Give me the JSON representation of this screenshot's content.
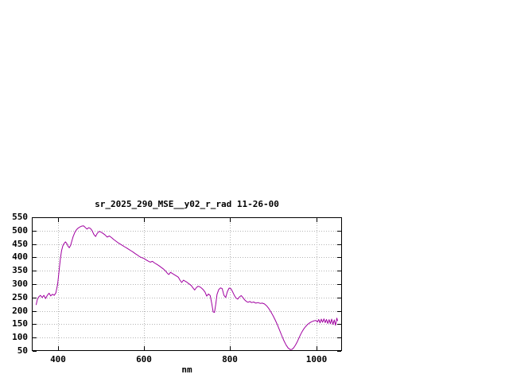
{
  "chart_data": {
    "type": "line",
    "title": "sr_2025_290_MSE__y02_r_rad 11-26-00",
    "xlabel": "nm",
    "ylabel": "",
    "xlim": [
      340,
      1060
    ],
    "ylim": [
      50,
      550
    ],
    "x_ticks": [
      400,
      600,
      800,
      1000
    ],
    "y_ticks": [
      50,
      100,
      150,
      200,
      250,
      300,
      350,
      400,
      450,
      500,
      550
    ],
    "grid": true,
    "legend": "none",
    "line_color": "#a000a0",
    "grid_color": "#b4b4b4",
    "axis_color": "#000000",
    "series": [
      {
        "name": "sr_2025_290_MSE__y02_r_rad",
        "points": [
          [
            350,
            222
          ],
          [
            353,
            243
          ],
          [
            356,
            252
          ],
          [
            360,
            258
          ],
          [
            364,
            250
          ],
          [
            368,
            258
          ],
          [
            372,
            246
          ],
          [
            376,
            258
          ],
          [
            380,
            266
          ],
          [
            384,
            256
          ],
          [
            388,
            262
          ],
          [
            392,
            258
          ],
          [
            396,
            268
          ],
          [
            400,
            300
          ],
          [
            403,
            345
          ],
          [
            406,
            392
          ],
          [
            409,
            425
          ],
          [
            412,
            443
          ],
          [
            415,
            452
          ],
          [
            418,
            458
          ],
          [
            421,
            452
          ],
          [
            424,
            442
          ],
          [
            427,
            436
          ],
          [
            430,
            445
          ],
          [
            433,
            462
          ],
          [
            436,
            478
          ],
          [
            440,
            494
          ],
          [
            444,
            504
          ],
          [
            448,
            510
          ],
          [
            452,
            514
          ],
          [
            456,
            517
          ],
          [
            460,
            518
          ],
          [
            464,
            512
          ],
          [
            468,
            506
          ],
          [
            472,
            511
          ],
          [
            476,
            508
          ],
          [
            480,
            500
          ],
          [
            484,
            486
          ],
          [
            488,
            478
          ],
          [
            492,
            490
          ],
          [
            496,
            497
          ],
          [
            500,
            495
          ],
          [
            505,
            490
          ],
          [
            510,
            484
          ],
          [
            515,
            476
          ],
          [
            520,
            480
          ],
          [
            525,
            474
          ],
          [
            530,
            467
          ],
          [
            535,
            461
          ],
          [
            540,
            455
          ],
          [
            545,
            450
          ],
          [
            550,
            445
          ],
          [
            555,
            440
          ],
          [
            560,
            435
          ],
          [
            565,
            430
          ],
          [
            570,
            425
          ],
          [
            575,
            420
          ],
          [
            580,
            414
          ],
          [
            585,
            409
          ],
          [
            590,
            403
          ],
          [
            595,
            399
          ],
          [
            600,
            396
          ],
          [
            605,
            391
          ],
          [
            610,
            386
          ],
          [
            615,
            382
          ],
          [
            620,
            385
          ],
          [
            625,
            379
          ],
          [
            630,
            374
          ],
          [
            635,
            369
          ],
          [
            640,
            363
          ],
          [
            645,
            357
          ],
          [
            650,
            350
          ],
          [
            655,
            340
          ],
          [
            658,
            336
          ],
          [
            662,
            344
          ],
          [
            666,
            340
          ],
          [
            670,
            336
          ],
          [
            675,
            331
          ],
          [
            680,
            326
          ],
          [
            684,
            315
          ],
          [
            688,
            306
          ],
          [
            692,
            315
          ],
          [
            696,
            311
          ],
          [
            700,
            307
          ],
          [
            705,
            301
          ],
          [
            710,
            295
          ],
          [
            714,
            286
          ],
          [
            718,
            278
          ],
          [
            722,
            287
          ],
          [
            726,
            292
          ],
          [
            730,
            290
          ],
          [
            734,
            285
          ],
          [
            738,
            279
          ],
          [
            742,
            270
          ],
          [
            746,
            255
          ],
          [
            750,
            263
          ],
          [
            754,
            257
          ],
          [
            758,
            225
          ],
          [
            761,
            196
          ],
          [
            764,
            194
          ],
          [
            767,
            225
          ],
          [
            770,
            262
          ],
          [
            774,
            280
          ],
          [
            778,
            286
          ],
          [
            782,
            283
          ],
          [
            786,
            258
          ],
          [
            790,
            250
          ],
          [
            794,
            272
          ],
          [
            798,
            285
          ],
          [
            802,
            283
          ],
          [
            806,
            272
          ],
          [
            810,
            258
          ],
          [
            814,
            248
          ],
          [
            818,
            244
          ],
          [
            822,
            252
          ],
          [
            826,
            257
          ],
          [
            830,
            250
          ],
          [
            834,
            241
          ],
          [
            838,
            235
          ],
          [
            842,
            232
          ],
          [
            846,
            235
          ],
          [
            850,
            231
          ],
          [
            855,
            233
          ],
          [
            860,
            229
          ],
          [
            865,
            231
          ],
          [
            870,
            228
          ],
          [
            875,
            229
          ],
          [
            880,
            226
          ],
          [
            885,
            219
          ],
          [
            890,
            209
          ],
          [
            895,
            196
          ],
          [
            900,
            182
          ],
          [
            905,
            166
          ],
          [
            910,
            148
          ],
          [
            915,
            128
          ],
          [
            920,
            108
          ],
          [
            925,
            89
          ],
          [
            930,
            73
          ],
          [
            935,
            61
          ],
          [
            940,
            55
          ],
          [
            944,
            56
          ],
          [
            948,
            62
          ],
          [
            952,
            72
          ],
          [
            956,
            84
          ],
          [
            960,
            98
          ],
          [
            964,
            112
          ],
          [
            968,
            124
          ],
          [
            972,
            134
          ],
          [
            976,
            142
          ],
          [
            980,
            149
          ],
          [
            984,
            154
          ],
          [
            988,
            158
          ],
          [
            992,
            161
          ],
          [
            996,
            163
          ],
          [
            1000,
            164
          ],
          [
            1003,
            158
          ],
          [
            1006,
            168
          ],
          [
            1009,
            155
          ],
          [
            1012,
            169
          ],
          [
            1015,
            157
          ],
          [
            1018,
            170
          ],
          [
            1021,
            156
          ],
          [
            1024,
            168
          ],
          [
            1027,
            153
          ],
          [
            1030,
            167
          ],
          [
            1033,
            152
          ],
          [
            1036,
            169
          ],
          [
            1039,
            149
          ],
          [
            1042,
            166
          ],
          [
            1045,
            146
          ],
          [
            1048,
            173
          ],
          [
            1050,
            162
          ]
        ]
      }
    ]
  }
}
